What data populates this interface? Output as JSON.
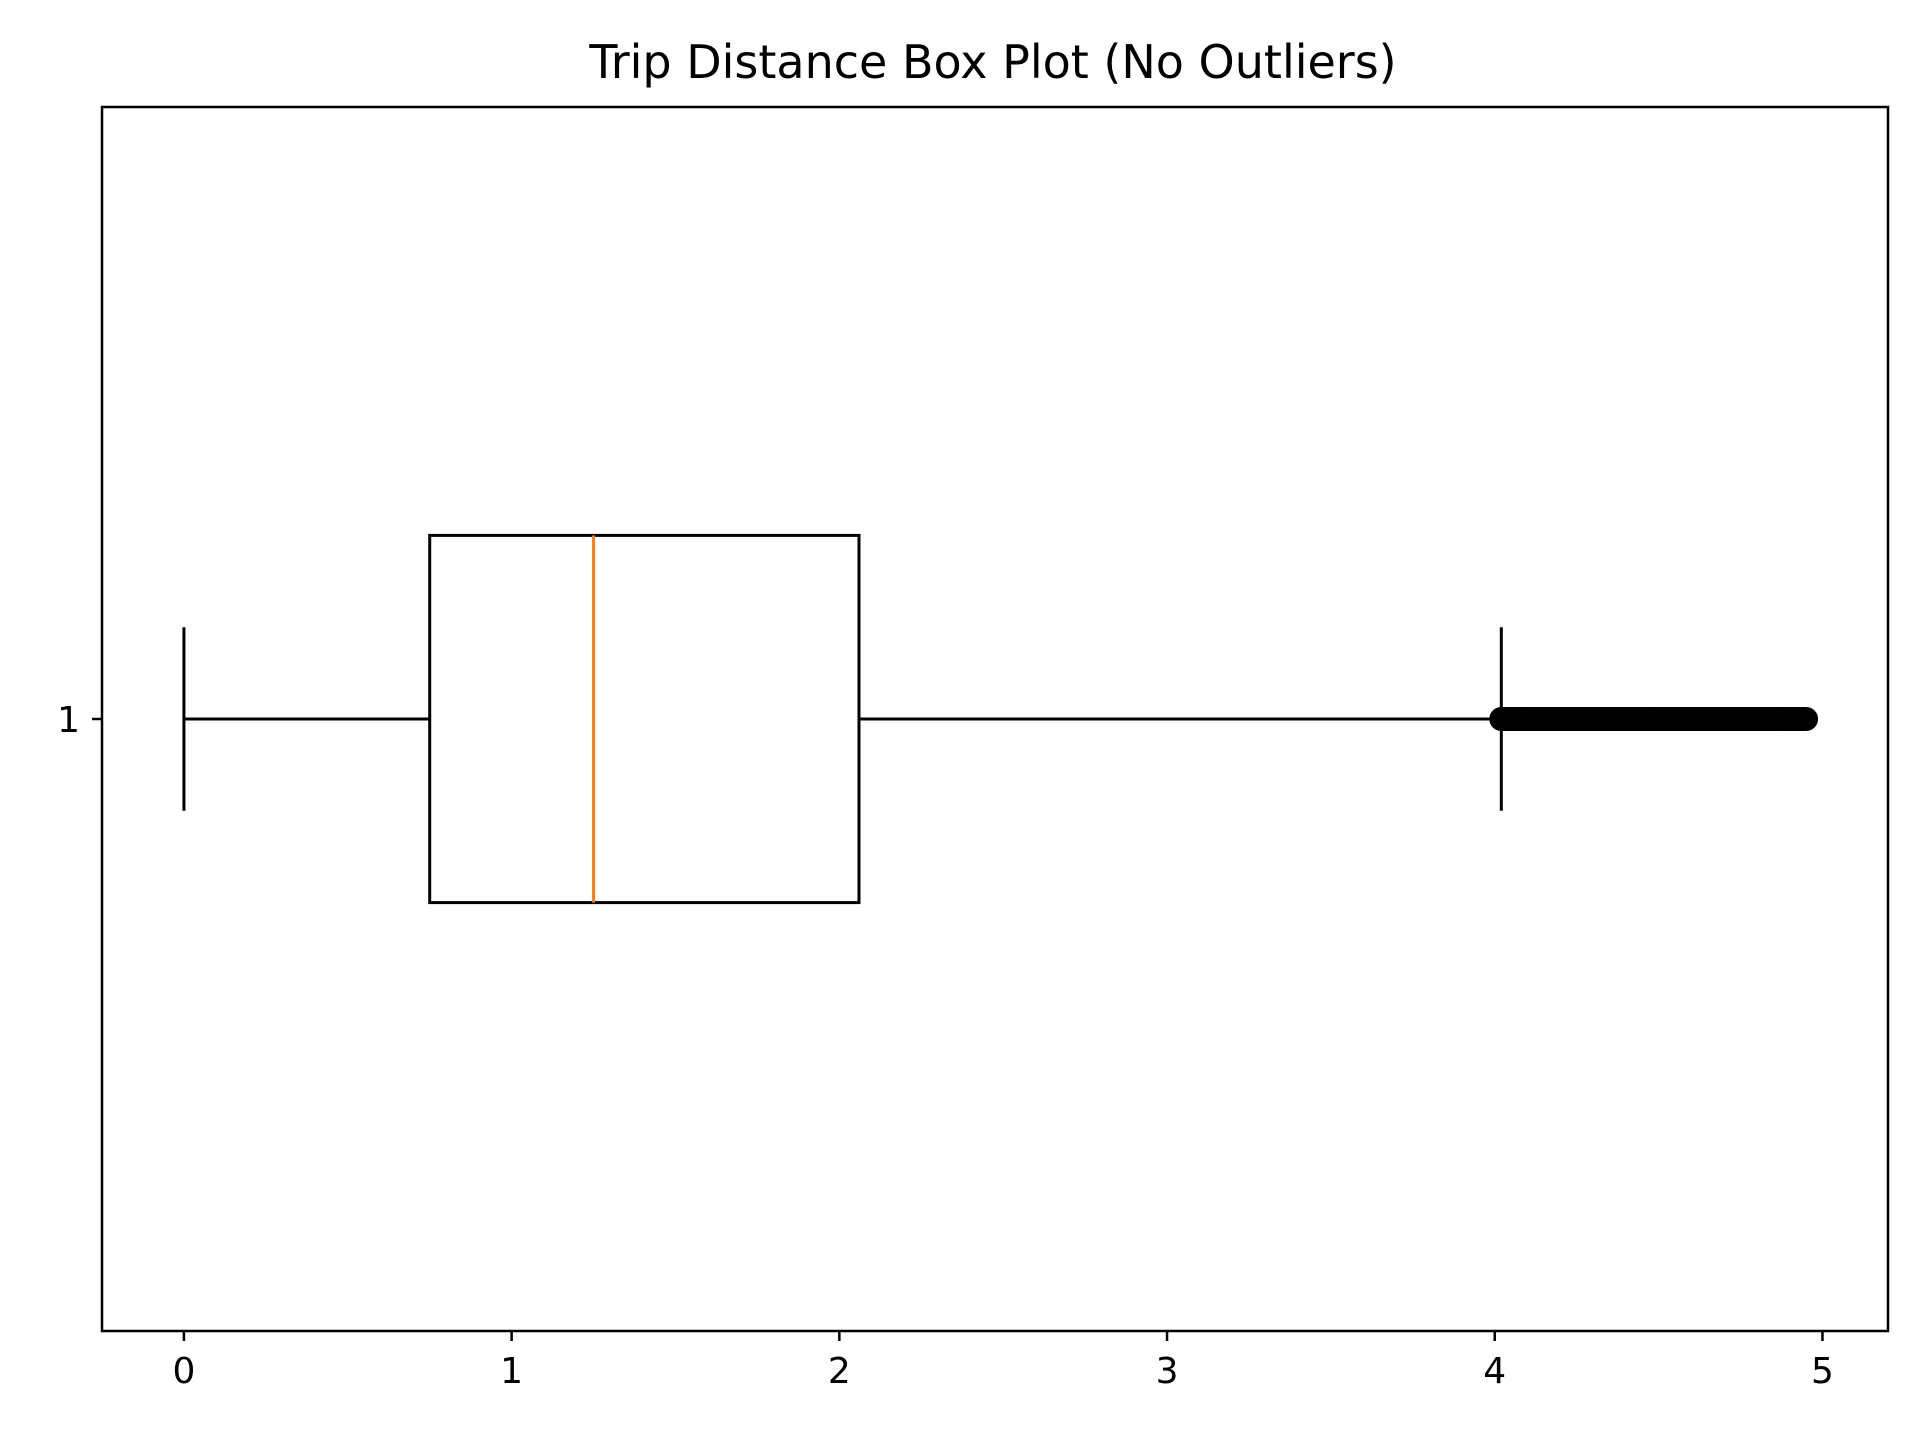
{
  "colors": {
    "box": "#000000",
    "median": "#ff7f0e",
    "flier": "#000000",
    "background": "#ffffff"
  },
  "chart_data": {
    "type": "boxplot",
    "orientation": "horizontal",
    "title": "Trip Distance Box Plot (No Outliers)",
    "xlabel": "",
    "ylabel": "",
    "xlim": [
      -0.25,
      5.2
    ],
    "xticks": [
      0,
      1,
      2,
      3,
      4,
      5
    ],
    "xtick_labels": [
      "0",
      "1",
      "2",
      "3",
      "4",
      "5"
    ],
    "category_labels": [
      "1"
    ],
    "grid": false,
    "boxes": [
      {
        "position": 1,
        "whisker_low": 0.0,
        "q1": 0.75,
        "median": 1.25,
        "q3": 2.06,
        "whisker_high": 4.02,
        "fliers_range": [
          4.02,
          4.95
        ]
      }
    ]
  }
}
